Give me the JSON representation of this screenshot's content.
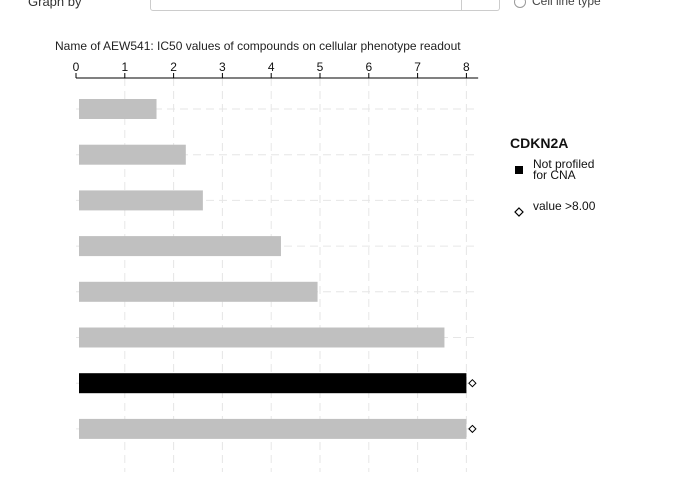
{
  "top_controls": {
    "label": "Graph by",
    "right_option": "Cell line type"
  },
  "chart_data": {
    "type": "bar",
    "orientation": "horizontal",
    "title": "Name of AEW541: IC50 values of compounds on cellular phenotype readout",
    "xlim": [
      0,
      8.2
    ],
    "xticks": [
      0,
      1,
      2,
      3,
      4,
      5,
      6,
      7,
      8
    ],
    "xaxis_position": "top",
    "grid": true,
    "bars": [
      {
        "value": 1.65,
        "group": "other",
        "exceeds_max": false
      },
      {
        "value": 2.25,
        "group": "other",
        "exceeds_max": false
      },
      {
        "value": 2.6,
        "group": "other",
        "exceeds_max": false
      },
      {
        "value": 4.2,
        "group": "other",
        "exceeds_max": false
      },
      {
        "value": 4.95,
        "group": "other",
        "exceeds_max": false
      },
      {
        "value": 7.55,
        "group": "other",
        "exceeds_max": false
      },
      {
        "value": 8.0,
        "group": "not_profiled",
        "exceeds_max": true
      },
      {
        "value": 8.0,
        "group": "other",
        "exceeds_max": true
      }
    ],
    "colors": {
      "other": "#c0c0c0",
      "not_profiled": "#000000"
    },
    "legend": {
      "title": "CDKN2A",
      "placement": "right",
      "items": [
        {
          "label_lines": [
            "Not profiled",
            "for CNA"
          ],
          "symbol": "filled-square",
          "color": "#000000"
        },
        {
          "label_lines": [
            "value >8.00"
          ],
          "symbol": "open-diamond",
          "color": "#000000"
        }
      ]
    }
  }
}
